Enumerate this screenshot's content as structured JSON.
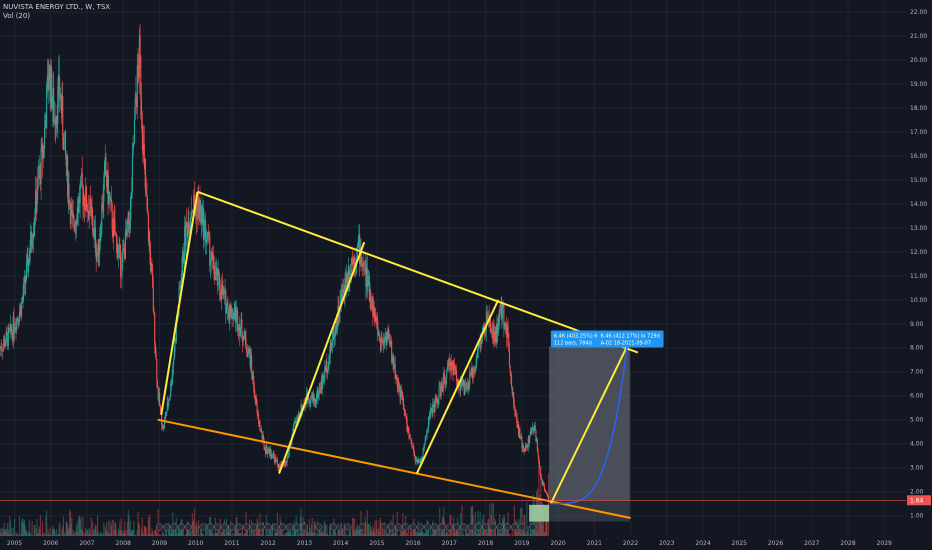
{
  "header": {
    "symbol_line": "NUVISTA ENERGY LTD., W, TSX",
    "indicator_line": "Vol (20)"
  },
  "colors": {
    "background": "#131722",
    "grid": "#1f2430",
    "up_candle": "#26a69a",
    "down_candle": "#ef5350",
    "channel_upper": "#ffeb3b",
    "channel_lower": "#ff9800",
    "projection": "#ffeb3b",
    "curve": "#2962ff",
    "position_box": "#787b86",
    "label_bg": "#2196f3",
    "last_price_line": "#ef5350"
  },
  "chart_data": {
    "type": "candlestick",
    "title": "NUVISTA ENERGY LTD., W, TSX",
    "y_axis": {
      "ticks": [
        "1.00",
        "2.00",
        "3.00",
        "4.00",
        "5.00",
        "6.00",
        "7.00",
        "8.00",
        "9.00",
        "10.00",
        "11.00",
        "12.00",
        "13.00",
        "14.00",
        "15.00",
        "16.00",
        "17.00",
        "18.00",
        "19.00",
        "20.00",
        "21.00",
        "22.00"
      ],
      "range": [
        0.15,
        22.5
      ],
      "position": "right"
    },
    "x_axis": {
      "ticks": [
        "2005",
        "2006",
        "2007",
        "2008",
        "2009",
        "2010",
        "2011",
        "2012",
        "2013",
        "2014",
        "2015",
        "2016",
        "2017",
        "2018",
        "2019",
        "2020",
        "2021",
        "2022",
        "2023",
        "2024",
        "2025",
        "2026",
        "2027",
        "2028",
        "2029"
      ],
      "range": [
        2004.6,
        2029.6
      ]
    },
    "price_path": [
      [
        2004.6,
        8.0
      ],
      [
        2004.9,
        8.6
      ],
      [
        2005.2,
        9.8
      ],
      [
        2005.4,
        11.8
      ],
      [
        2005.6,
        14.2
      ],
      [
        2005.8,
        16.4
      ],
      [
        2005.95,
        19.6
      ],
      [
        2006.1,
        17.6
      ],
      [
        2006.25,
        18.8
      ],
      [
        2006.4,
        16.0
      ],
      [
        2006.6,
        13.0
      ],
      [
        2006.85,
        14.6
      ],
      [
        2007.1,
        13.6
      ],
      [
        2007.3,
        11.8
      ],
      [
        2007.5,
        15.4
      ],
      [
        2007.7,
        13.2
      ],
      [
        2007.95,
        11.4
      ],
      [
        2008.2,
        13.6
      ],
      [
        2008.35,
        18.4
      ],
      [
        2008.45,
        20.2
      ],
      [
        2008.6,
        14.8
      ],
      [
        2008.8,
        10.6
      ],
      [
        2008.95,
        6.2
      ],
      [
        2009.1,
        4.6
      ],
      [
        2009.3,
        6.2
      ],
      [
        2009.5,
        9.4
      ],
      [
        2009.7,
        12.6
      ],
      [
        2009.9,
        14.0
      ],
      [
        2010.1,
        13.8
      ],
      [
        2010.3,
        12.6
      ],
      [
        2010.5,
        11.2
      ],
      [
        2010.7,
        10.4
      ],
      [
        2010.9,
        9.6
      ],
      [
        2011.1,
        9.4
      ],
      [
        2011.3,
        8.6
      ],
      [
        2011.5,
        7.6
      ],
      [
        2011.7,
        5.2
      ],
      [
        2011.9,
        3.8
      ],
      [
        2012.1,
        3.6
      ],
      [
        2012.3,
        3.0
      ],
      [
        2012.5,
        3.2
      ],
      [
        2012.7,
        4.6
      ],
      [
        2012.9,
        5.4
      ],
      [
        2013.1,
        6.0
      ],
      [
        2013.3,
        5.8
      ],
      [
        2013.5,
        6.6
      ],
      [
        2013.7,
        7.8
      ],
      [
        2013.9,
        9.2
      ],
      [
        2014.1,
        10.6
      ],
      [
        2014.3,
        11.6
      ],
      [
        2014.5,
        12.2
      ],
      [
        2014.7,
        11.0
      ],
      [
        2014.9,
        9.6
      ],
      [
        2015.1,
        8.2
      ],
      [
        2015.3,
        8.6
      ],
      [
        2015.5,
        7.0
      ],
      [
        2015.7,
        5.8
      ],
      [
        2015.9,
        4.2
      ],
      [
        2016.1,
        3.2
      ],
      [
        2016.25,
        3.4
      ],
      [
        2016.45,
        5.2
      ],
      [
        2016.65,
        5.8
      ],
      [
        2016.85,
        6.6
      ],
      [
        2017.05,
        7.4
      ],
      [
        2017.25,
        6.6
      ],
      [
        2017.45,
        6.2
      ],
      [
        2017.65,
        7.0
      ],
      [
        2017.85,
        8.2
      ],
      [
        2018.05,
        9.2
      ],
      [
        2018.25,
        8.4
      ],
      [
        2018.45,
        9.6
      ],
      [
        2018.6,
        8.6
      ],
      [
        2018.75,
        6.0
      ],
      [
        2018.9,
        4.6
      ],
      [
        2019.05,
        3.6
      ],
      [
        2019.2,
        4.2
      ],
      [
        2019.35,
        4.8
      ],
      [
        2019.45,
        3.4
      ],
      [
        2019.55,
        2.4
      ],
      [
        2019.7,
        1.9
      ],
      [
        2019.75,
        1.64
      ]
    ],
    "volume_max_ratio": 0.55,
    "drawings": {
      "upper_channel": [
        [
          2010.05,
          14.5
        ],
        [
          2022.2,
          7.8
        ]
      ],
      "lower_channel": [
        [
          2008.95,
          5.0
        ],
        [
          2022.0,
          0.9
        ]
      ],
      "legs": [
        [
          [
            2009.05,
            5.2
          ],
          [
            2010.05,
            14.5
          ]
        ],
        [
          [
            2012.3,
            2.75
          ],
          [
            2014.65,
            12.4
          ]
        ],
        [
          [
            2016.1,
            2.75
          ],
          [
            2018.35,
            10.0
          ]
        ],
        [
          [
            2019.8,
            1.5
          ],
          [
            2021.9,
            8.05
          ]
        ]
      ],
      "curve": {
        "from": [
          2019.8,
          1.5
        ],
        "to": [
          2021.9,
          8.05
        ]
      },
      "position_box": {
        "x": [
          2019.75,
          2021.98
        ],
        "y_top": 8.05,
        "y_mid": 1.62,
        "y_bot": 0.75
      },
      "green_box": {
        "x": [
          2019.2,
          2019.75
        ],
        "y": [
          0.75,
          1.45
        ]
      },
      "label_1": {
        "x": 2019.8,
        "y": 8.55,
        "line1": "6.46 (403.25%) 646",
        "line2": "112 bars, 784d"
      },
      "label_2": {
        "x": 2021.2,
        "y": 8.55,
        "line1": "6.46 (412.17%) lo 729d",
        "line2": "A-02 18-2021-09-07"
      }
    },
    "last_price": {
      "value": 1.64,
      "label": "1.64"
    },
    "grid": true
  }
}
